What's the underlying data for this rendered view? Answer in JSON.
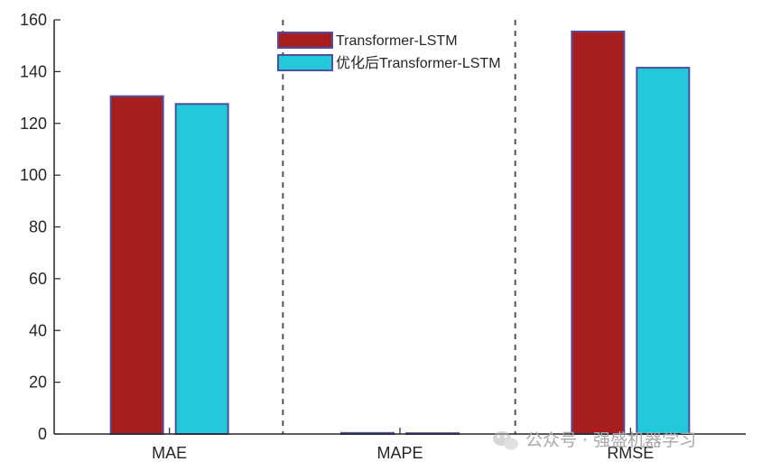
{
  "chart_data": {
    "type": "bar",
    "categories": [
      "MAE",
      "MAPE",
      "RMSE"
    ],
    "series": [
      {
        "name": "Transformer-LSTM",
        "values": [
          130.5,
          0.4,
          155.5
        ],
        "color": "#A81E1E"
      },
      {
        "name": "优化后Transformer-LSTM",
        "values": [
          127.5,
          0.3,
          141.5
        ],
        "color": "#22C9DB"
      }
    ],
    "bar_edge_color": "#4F4FA0",
    "ylim": [
      0,
      160
    ],
    "yticks": [
      "0",
      "20",
      "40",
      "60",
      "80",
      "100",
      "120",
      "140",
      "160"
    ],
    "legend_position": "top-center",
    "category_separators": "dashed",
    "grid": false
  },
  "watermark": {
    "text": "公众号 · 强盛机器学习",
    "icon": "wechat-icon"
  }
}
